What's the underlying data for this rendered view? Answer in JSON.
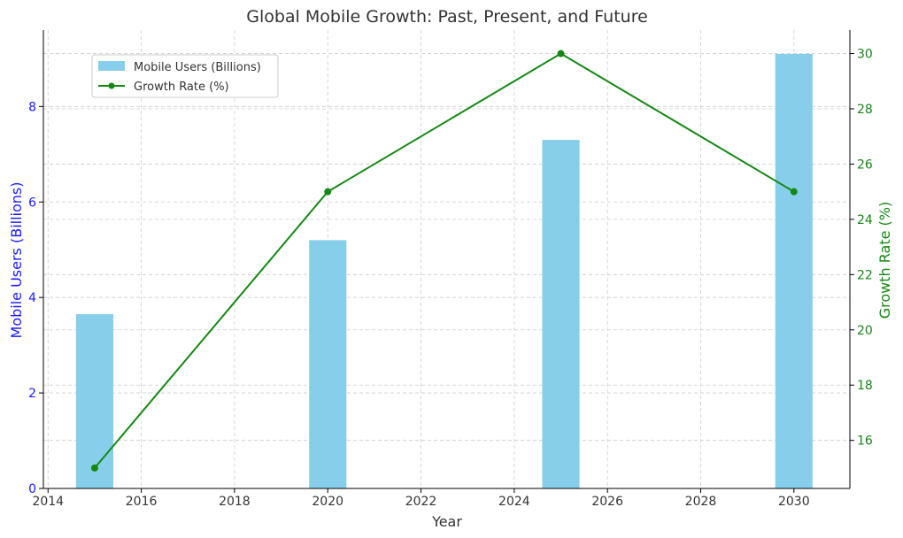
{
  "chart_data": {
    "type": "bar",
    "title": "Global Mobile Growth: Past, Present, and Future",
    "xlabel": "Year",
    "ylabel_left": "Mobile Users (Billions)",
    "ylabel_right": "Growth Rate (%)",
    "x": [
      2015,
      2020,
      2025,
      2030
    ],
    "xlim": [
      2013.9,
      2031.2
    ],
    "ylim_left": [
      0,
      9.6
    ],
    "ylim_right": [
      14.26,
      30.85
    ],
    "x_ticks": [
      2014,
      2016,
      2018,
      2020,
      2022,
      2024,
      2026,
      2028,
      2030
    ],
    "y_ticks_left": [
      0,
      2,
      4,
      6,
      8
    ],
    "y_ticks_right": [
      16,
      18,
      20,
      22,
      24,
      26,
      28,
      30
    ],
    "bar_width_years": 0.8,
    "grid": true,
    "legend_position": "top-left",
    "series": [
      {
        "name": "Mobile Users (Billions)",
        "kind": "bar",
        "axis": "left",
        "color": "#87CEEB",
        "values": [
          3.65,
          5.2,
          7.3,
          9.1
        ]
      },
      {
        "name": "Growth Rate (%)",
        "kind": "line",
        "axis": "right",
        "color": "#138813",
        "values": [
          15,
          25,
          30,
          25
        ]
      }
    ],
    "colors": {
      "left_axis": "#1a1aff",
      "right_axis": "#138813",
      "text": "#333333",
      "grid": "#cccccc"
    }
  }
}
